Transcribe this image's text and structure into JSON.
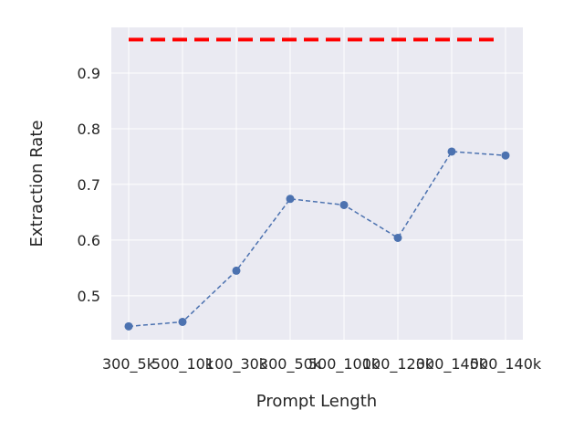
{
  "chart_data": {
    "type": "line",
    "x_label": "Prompt Length",
    "y_label": "Extraction Rate",
    "categories": [
      "300_5k",
      "500_10k",
      "100_30k",
      "300_50k",
      "500_100k",
      "100_120k",
      "300_140k",
      "500_140k"
    ],
    "series": [
      {
        "color": "#4c72b0",
        "values": [
          0.445,
          0.453,
          0.545,
          0.674,
          0.663,
          0.604,
          0.759,
          0.752
        ]
      }
    ],
    "hline": {
      "value": 0.96,
      "color": "#ff0000"
    },
    "ylim": [
      0.421,
      0.982
    ],
    "yticks": [
      0.5,
      0.6,
      0.7,
      0.8,
      0.9
    ],
    "grid": true
  }
}
